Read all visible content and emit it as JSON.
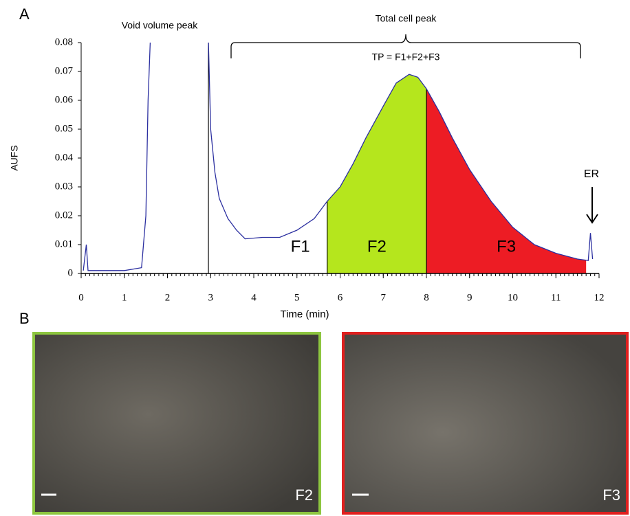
{
  "panel_a": "A",
  "panel_b": "B",
  "chart_data": {
    "type": "line",
    "xlabel": "Time (min)",
    "ylabel": "AUFS",
    "xlim": [
      0,
      12
    ],
    "ylim": [
      0,
      0.08
    ],
    "xticks": [
      0,
      1,
      2,
      3,
      4,
      5,
      6,
      7,
      8,
      9,
      10,
      11,
      12
    ],
    "yticks": [
      0,
      0.01,
      0.02,
      0.03,
      0.04,
      0.05,
      0.06,
      0.07,
      0.08
    ],
    "series": [
      {
        "color": "#2b2fa0",
        "x": [
          0.05,
          0.12,
          0.16,
          1.0,
          1.4,
          1.5,
          1.55,
          1.6,
          null,
          2.95,
          3.0,
          3.1,
          3.2,
          3.4,
          3.6,
          3.8,
          4.2,
          4.6,
          5.0,
          5.4,
          5.7,
          6.0,
          6.3,
          6.6,
          7.0,
          7.3,
          7.6,
          7.8,
          8.0,
          8.3,
          8.6,
          9.0,
          9.5,
          10.0,
          10.5,
          11.0,
          11.5,
          11.75,
          11.8,
          11.85
        ],
        "values": [
          0.001,
          0.01,
          0.001,
          0.001,
          0.002,
          0.02,
          0.06,
          0.08,
          null,
          0.08,
          0.05,
          0.035,
          0.026,
          0.019,
          0.015,
          0.012,
          0.0125,
          0.0125,
          0.015,
          0.019,
          0.025,
          0.03,
          0.038,
          0.047,
          0.058,
          0.066,
          0.069,
          0.068,
          0.064,
          0.056,
          0.047,
          0.036,
          0.025,
          0.016,
          0.01,
          0.007,
          0.005,
          0.0045,
          0.014,
          0.005
        ]
      }
    ],
    "regions": [
      {
        "name": "F1",
        "from": 3.5,
        "to": 5.7
      },
      {
        "name": "F2",
        "from": 5.7,
        "to": 8.0,
        "color": "#b5e61d"
      },
      {
        "name": "F3",
        "from": 8.0,
        "to": 11.7,
        "color": "#ed1c24"
      }
    ],
    "annotations": {
      "void": "Void volume peak",
      "total": "Total cell peak",
      "tp": "TP = F1+F2+F3",
      "er": "ER"
    }
  },
  "images": [
    {
      "label": "F2",
      "border": "#8dc63f"
    },
    {
      "label": "F3",
      "border": "#e0201f"
    }
  ]
}
